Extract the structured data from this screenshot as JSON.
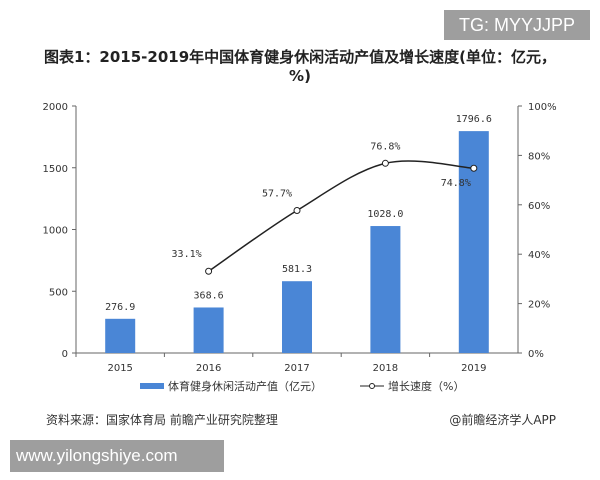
{
  "watermark_top": "TG: MYYJJPP",
  "watermark_bottom": "www.yilongshiye.com",
  "source": "资料来源：国家体育局 前瞻产业研究院整理",
  "brand": "@前瞻经济学人APP",
  "chart_data": {
    "type": "bar+line",
    "title": "图表1：2015-2019年中国体育健身休闲活动产值及增长速度(单位：亿元，%)",
    "categories": [
      "2015",
      "2016",
      "2017",
      "2018",
      "2019"
    ],
    "series": [
      {
        "name": "体育健身休闲活动产值（亿元）",
        "type": "bar",
        "axis": "left",
        "values": [
          276.9,
          368.6,
          581.3,
          1028.0,
          1796.6
        ],
        "labels": [
          "276.9",
          "368.6",
          "581.3",
          "1028.0",
          "1796.6"
        ],
        "color": "#4a86d6"
      },
      {
        "name": "增长速度（%）",
        "type": "line",
        "axis": "right",
        "values": [
          null,
          33.1,
          57.7,
          76.8,
          74.8
        ],
        "labels": [
          "",
          "33.1%",
          "57.7%",
          "76.8%",
          "74.8%"
        ],
        "color": "#222222"
      }
    ],
    "left_axis": {
      "ylim": [
        0,
        2000
      ],
      "ticks": [
        "0",
        "500",
        "1000",
        "1500",
        "2000"
      ]
    },
    "right_axis": {
      "ylim": [
        0,
        100
      ],
      "ticks": [
        "0%",
        "20%",
        "40%",
        "60%",
        "80%",
        "100%"
      ]
    },
    "legend": "bottom",
    "grid": false
  }
}
